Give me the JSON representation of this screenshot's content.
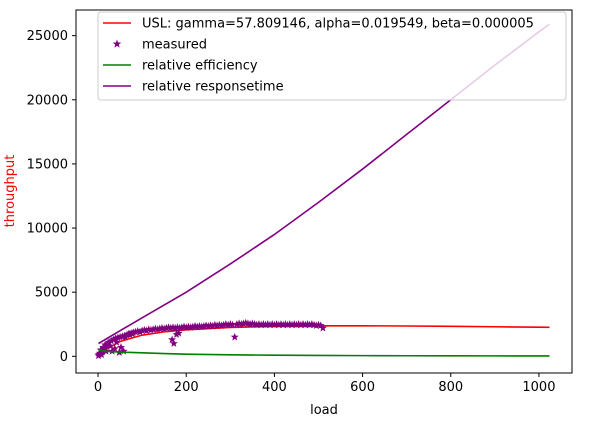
{
  "chart_data": {
    "type": "line",
    "xlabel": "load",
    "ylabel": "throughput",
    "ylabel_color": "#ff0000",
    "xlim": [
      -50,
      1075
    ],
    "ylim": [
      -1300,
      27000
    ],
    "xticks": [
      0,
      200,
      400,
      600,
      800,
      1000
    ],
    "yticks": [
      0,
      5000,
      10000,
      15000,
      20000,
      25000
    ],
    "legend_position": "top-right",
    "grid": false,
    "series": [
      {
        "name": "USL: gamma=57.809146, alpha=0.019549, beta=0.000005",
        "kind": "line",
        "color": "#ff0000",
        "x": [
          1,
          20,
          50,
          100,
          150,
          200,
          300,
          400,
          500,
          600,
          700,
          800,
          900,
          1000,
          1024
        ],
        "y": [
          58,
          578,
          1160,
          1650,
          1905,
          2065,
          2250,
          2340,
          2375,
          2380,
          2365,
          2340,
          2305,
          2270,
          2260
        ]
      },
      {
        "name": "measured",
        "kind": "scatter",
        "color": "#800080",
        "x": [
          1,
          2,
          4,
          6,
          8,
          10,
          12,
          14,
          16,
          18,
          20,
          22,
          25,
          28,
          30,
          32,
          35,
          38,
          40,
          42,
          45,
          48,
          50,
          52,
          55,
          58,
          60,
          62,
          65,
          68,
          70,
          72,
          75,
          78,
          80,
          85,
          90,
          95,
          100,
          105,
          110,
          115,
          120,
          125,
          130,
          135,
          140,
          145,
          150,
          155,
          160,
          165,
          168,
          170,
          172,
          175,
          178,
          180,
          183,
          185,
          190,
          195,
          200,
          205,
          210,
          215,
          220,
          225,
          230,
          235,
          240,
          245,
          250,
          255,
          260,
          265,
          270,
          275,
          280,
          285,
          290,
          295,
          300,
          305,
          310,
          315,
          320,
          325,
          330,
          335,
          340,
          345,
          350,
          355,
          360,
          365,
          370,
          375,
          380,
          385,
          390,
          395,
          400,
          405,
          410,
          415,
          420,
          425,
          430,
          435,
          440,
          445,
          450,
          455,
          460,
          465,
          470,
          475,
          480,
          485,
          490,
          495,
          500,
          505,
          510
        ],
        "y": [
          50,
          150,
          250,
          500,
          120,
          350,
          700,
          600,
          900,
          400,
          800,
          1000,
          1100,
          800,
          1200,
          400,
          1300,
          600,
          1400,
          1100,
          1450,
          300,
          1500,
          700,
          1550,
          400,
          1600,
          1500,
          1650,
          1700,
          1750,
          1700,
          1800,
          1750,
          1850,
          1900,
          1950,
          1900,
          2000,
          2050,
          2000,
          2100,
          2050,
          2100,
          2150,
          2100,
          2150,
          2200,
          2150,
          2200,
          2250,
          2200,
          1300,
          2250,
          1000,
          2200,
          1700,
          2250,
          1800,
          2200,
          2250,
          2300,
          2250,
          2300,
          2250,
          2300,
          2350,
          2300,
          2350,
          2300,
          2350,
          2400,
          2350,
          2400,
          2350,
          2450,
          2400,
          2450,
          2400,
          2450,
          2500,
          2450,
          2500,
          2450,
          1500,
          2500,
          2550,
          2500,
          2550,
          2600,
          2550,
          2500,
          2550,
          2500,
          2450,
          2500,
          2450,
          2500,
          2450,
          2500,
          2450,
          2500,
          2450,
          2500,
          2450,
          2500,
          2450,
          2500,
          2450,
          2500,
          2450,
          2500,
          2450,
          2500,
          2450,
          2500,
          2450,
          2500,
          2450,
          2500,
          2450,
          2400,
          2450,
          2400,
          2200
        ]
      },
      {
        "name": "relative efficiency",
        "kind": "line",
        "color": "#008000",
        "x": [
          1,
          5,
          10,
          20,
          50,
          100,
          150,
          200,
          300,
          400,
          500,
          600,
          700,
          800,
          900,
          1000,
          1024
        ],
        "y": [
          500,
          470,
          430,
          380,
          330,
          270,
          215,
          170,
          120,
          88,
          68,
          55,
          46,
          40,
          35,
          30,
          29
        ]
      },
      {
        "name": "relative responsetime",
        "kind": "line",
        "color": "#800080",
        "x": [
          1,
          50,
          100,
          200,
          300,
          400,
          500,
          600,
          700,
          800,
          900,
          1000,
          1024
        ],
        "y": [
          1000,
          2000,
          3000,
          5000,
          7200,
          9500,
          12000,
          14600,
          17300,
          20000,
          22700,
          25300,
          25900
        ]
      }
    ]
  }
}
